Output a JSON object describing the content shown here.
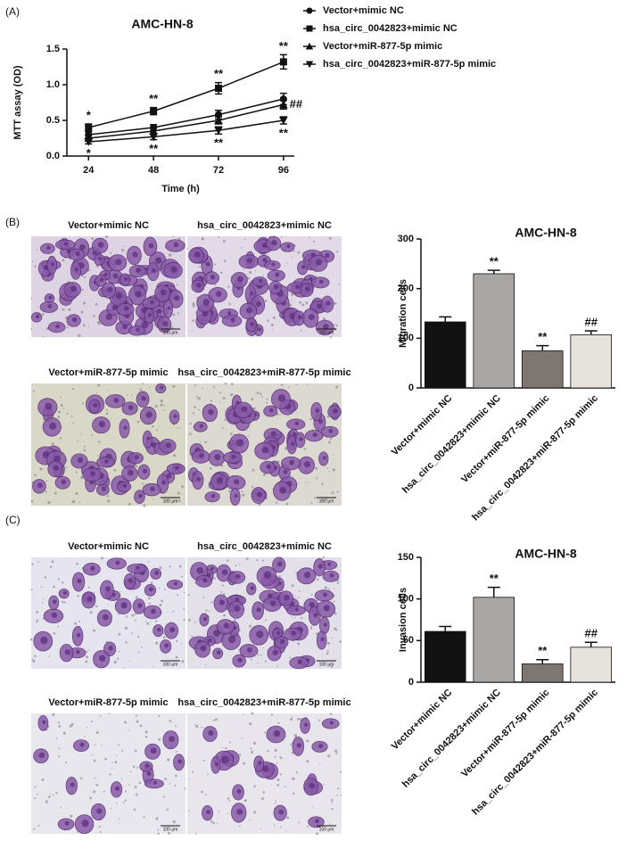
{
  "panels": [
    "(A)",
    "(B)",
    "(C)"
  ],
  "micrographs": [
    {
      "captions": [
        "Vector+mimic NC",
        "hsa_circ_0042823+mimic NC",
        "Vector+miR-877-5p mimic",
        "hsa_circ_0042823+miR-877-5p mimic"
      ],
      "scale_bar": "100 μm"
    },
    {
      "captions": [
        "Vector+mimic NC",
        "hsa_circ_0042823+mimic NC",
        "Vector+miR-877-5p mimic",
        "hsa_circ_0042823+miR-877-5p mimic"
      ],
      "scale_bar": "100 μm"
    }
  ],
  "chart_data": [
    {
      "type": "line",
      "title": "AMC-HN-8",
      "xlabel": "Time (h)",
      "ylabel": "MTT assay (OD)",
      "x": [
        24,
        48,
        72,
        96
      ],
      "xlim": [
        16,
        100
      ],
      "xticks": [
        24,
        48,
        72,
        96
      ],
      "ylim": [
        0,
        1.5
      ],
      "yticks": [
        {
          "value": 0,
          "label": "0.0"
        },
        0.5,
        {
          "value": 1,
          "label": "1.0"
        },
        1.5
      ],
      "legend": "outside-right",
      "series": [
        {
          "name": "Vector+mimic NC",
          "marker": "circle",
          "color": "#111111",
          "values": [
            0.3,
            0.4,
            0.58,
            0.8
          ],
          "errors": [
            0.04,
            0.04,
            0.06,
            0.08
          ]
        },
        {
          "name": "hsa_circ_0042823+mimic NC",
          "marker": "square",
          "color": "#111111",
          "values": [
            0.4,
            0.63,
            0.95,
            1.32
          ],
          "errors": [
            0.05,
            0.05,
            0.08,
            0.1
          ],
          "annotations": [
            "*",
            "**",
            "**",
            "**"
          ],
          "annotation_position": "above"
        },
        {
          "name": "Vector+miR-877-5p mimic",
          "marker": "triangle-up",
          "color": "#111111",
          "values": [
            0.25,
            0.35,
            0.5,
            0.72
          ],
          "errors": [
            0.04,
            0.04,
            0.05,
            0.06
          ],
          "annotations": [
            null,
            null,
            null,
            "##"
          ],
          "annotation_position": "right"
        },
        {
          "name": "hsa_circ_0042823+miR-877-5p mimic",
          "marker": "triangle-down",
          "color": "#111111",
          "values": [
            0.2,
            0.27,
            0.36,
            0.5
          ],
          "errors": [
            0.03,
            0.04,
            0.05,
            0.05
          ],
          "annotations": [
            "*",
            "**",
            "**",
            "**"
          ],
          "annotation_position": "below"
        }
      ]
    },
    {
      "type": "bar",
      "title": "AMC-HN-8",
      "ylabel": "Migration cells",
      "categories": [
        "Vector+mimic NC",
        "hsa_circ_0042823+mimic NC",
        "Vector+miR-877-5p mimic",
        "hsa_circ_0042823+miR-877-5p mimic"
      ],
      "values": [
        133,
        230,
        75,
        107
      ],
      "errors": [
        10,
        7,
        10,
        8
      ],
      "colors": [
        "#111111",
        "#a9a7a6",
        "#7d7671",
        "#e6e3dc"
      ],
      "annotations": [
        null,
        "**",
        "**",
        "##"
      ],
      "ylim": [
        0,
        300
      ],
      "yticks": [
        0,
        100,
        200,
        300
      ]
    },
    {
      "type": "bar",
      "title": "AMC-HN-8",
      "ylabel": "Invasion cells",
      "categories": [
        "Vector+mimic NC",
        "hsa_circ_0042823+mimic NC",
        "Vector+miR-877-5p mimic",
        "hsa_circ_0042823+miR-877-5p mimic"
      ],
      "values": [
        61,
        102,
        22,
        42
      ],
      "errors": [
        6,
        12,
        5,
        6
      ],
      "colors": [
        "#111111",
        "#a9a7a6",
        "#7d7671",
        "#e6e3dc"
      ],
      "annotations": [
        null,
        "**",
        "**",
        "##"
      ],
      "ylim": [
        0,
        150
      ],
      "yticks": [
        0,
        50,
        100,
        150
      ]
    }
  ]
}
